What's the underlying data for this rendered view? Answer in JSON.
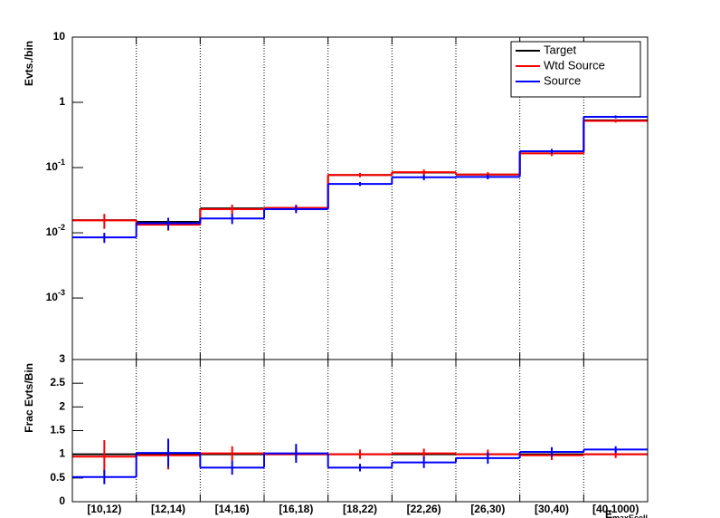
{
  "chart_data": [
    {
      "type": "step",
      "log_y": true,
      "grid_x": true,
      "y_label": "Evts./bin",
      "ylim": [
        0.000114,
        10
      ],
      "yticks": [
        {
          "value": 10,
          "label": "10"
        },
        {
          "value": 1,
          "label": "1"
        },
        {
          "value": 0.1,
          "label": "10",
          "exp": "-1"
        },
        {
          "value": 0.01,
          "label": "10",
          "exp": "-2"
        },
        {
          "value": 0.001,
          "label": "10",
          "exp": "-3"
        }
      ],
      "legend": "top-right",
      "series": [
        {
          "name": "Target",
          "color": "#000000",
          "values": [
            0.0156,
            0.0147,
            0.0237,
            0.024,
            0.077,
            0.084,
            0.078,
            0.177,
            0.53
          ]
        },
        {
          "name": "Wtd Source",
          "color": "#ff0000",
          "values": [
            0.0155,
            0.0133,
            0.023,
            0.024,
            0.077,
            0.085,
            0.078,
            0.165,
            0.52
          ],
          "errors": [
            0.004,
            0.0025,
            0.004,
            0.003,
            0.006,
            0.008,
            0.007,
            0.015,
            0.03
          ]
        },
        {
          "name": "Source",
          "color": "#0000ff",
          "values": [
            0.0085,
            0.014,
            0.0166,
            0.023,
            0.056,
            0.071,
            0.072,
            0.178,
            0.6
          ],
          "errors": [
            0.0015,
            0.003,
            0.003,
            0.003,
            0.004,
            0.007,
            0.006,
            0.015,
            0.03
          ]
        }
      ]
    },
    {
      "type": "step",
      "log_y": false,
      "grid_x": true,
      "y_label": "Frac Evts/Bin",
      "x_label": "E",
      "x_label_sub": "maxEcell",
      "categories": [
        "[10,12)",
        "[12,14)",
        "[14,16)",
        "[16,18)",
        "[18,22)",
        "[22,26)",
        "[26,30)",
        "[30,40)",
        "[40,1000)"
      ],
      "ylim": [
        0,
        3
      ],
      "yticks": [
        0,
        0.5,
        1,
        1.5,
        2,
        2.5,
        3
      ],
      "series": [
        {
          "name": "Target",
          "color": "#000000",
          "values": [
            1,
            1,
            1,
            1,
            1,
            1,
            1,
            1,
            1
          ]
        },
        {
          "name": "Wtd Source",
          "color": "#ff0000",
          "values": [
            0.95,
            0.98,
            1.02,
            1.0,
            1.0,
            1.02,
            1.0,
            0.98,
            1.0
          ],
          "errors": [
            0.35,
            0.3,
            0.15,
            0.12,
            0.1,
            0.1,
            0.1,
            0.1,
            0.08
          ]
        },
        {
          "name": "Source",
          "color": "#0000ff",
          "values": [
            0.52,
            1.03,
            0.72,
            1.02,
            0.72,
            0.83,
            0.92,
            1.05,
            1.1
          ],
          "errors": [
            0.15,
            0.3,
            0.15,
            0.2,
            0.08,
            0.12,
            0.12,
            0.1,
            0.07
          ]
        }
      ]
    }
  ]
}
